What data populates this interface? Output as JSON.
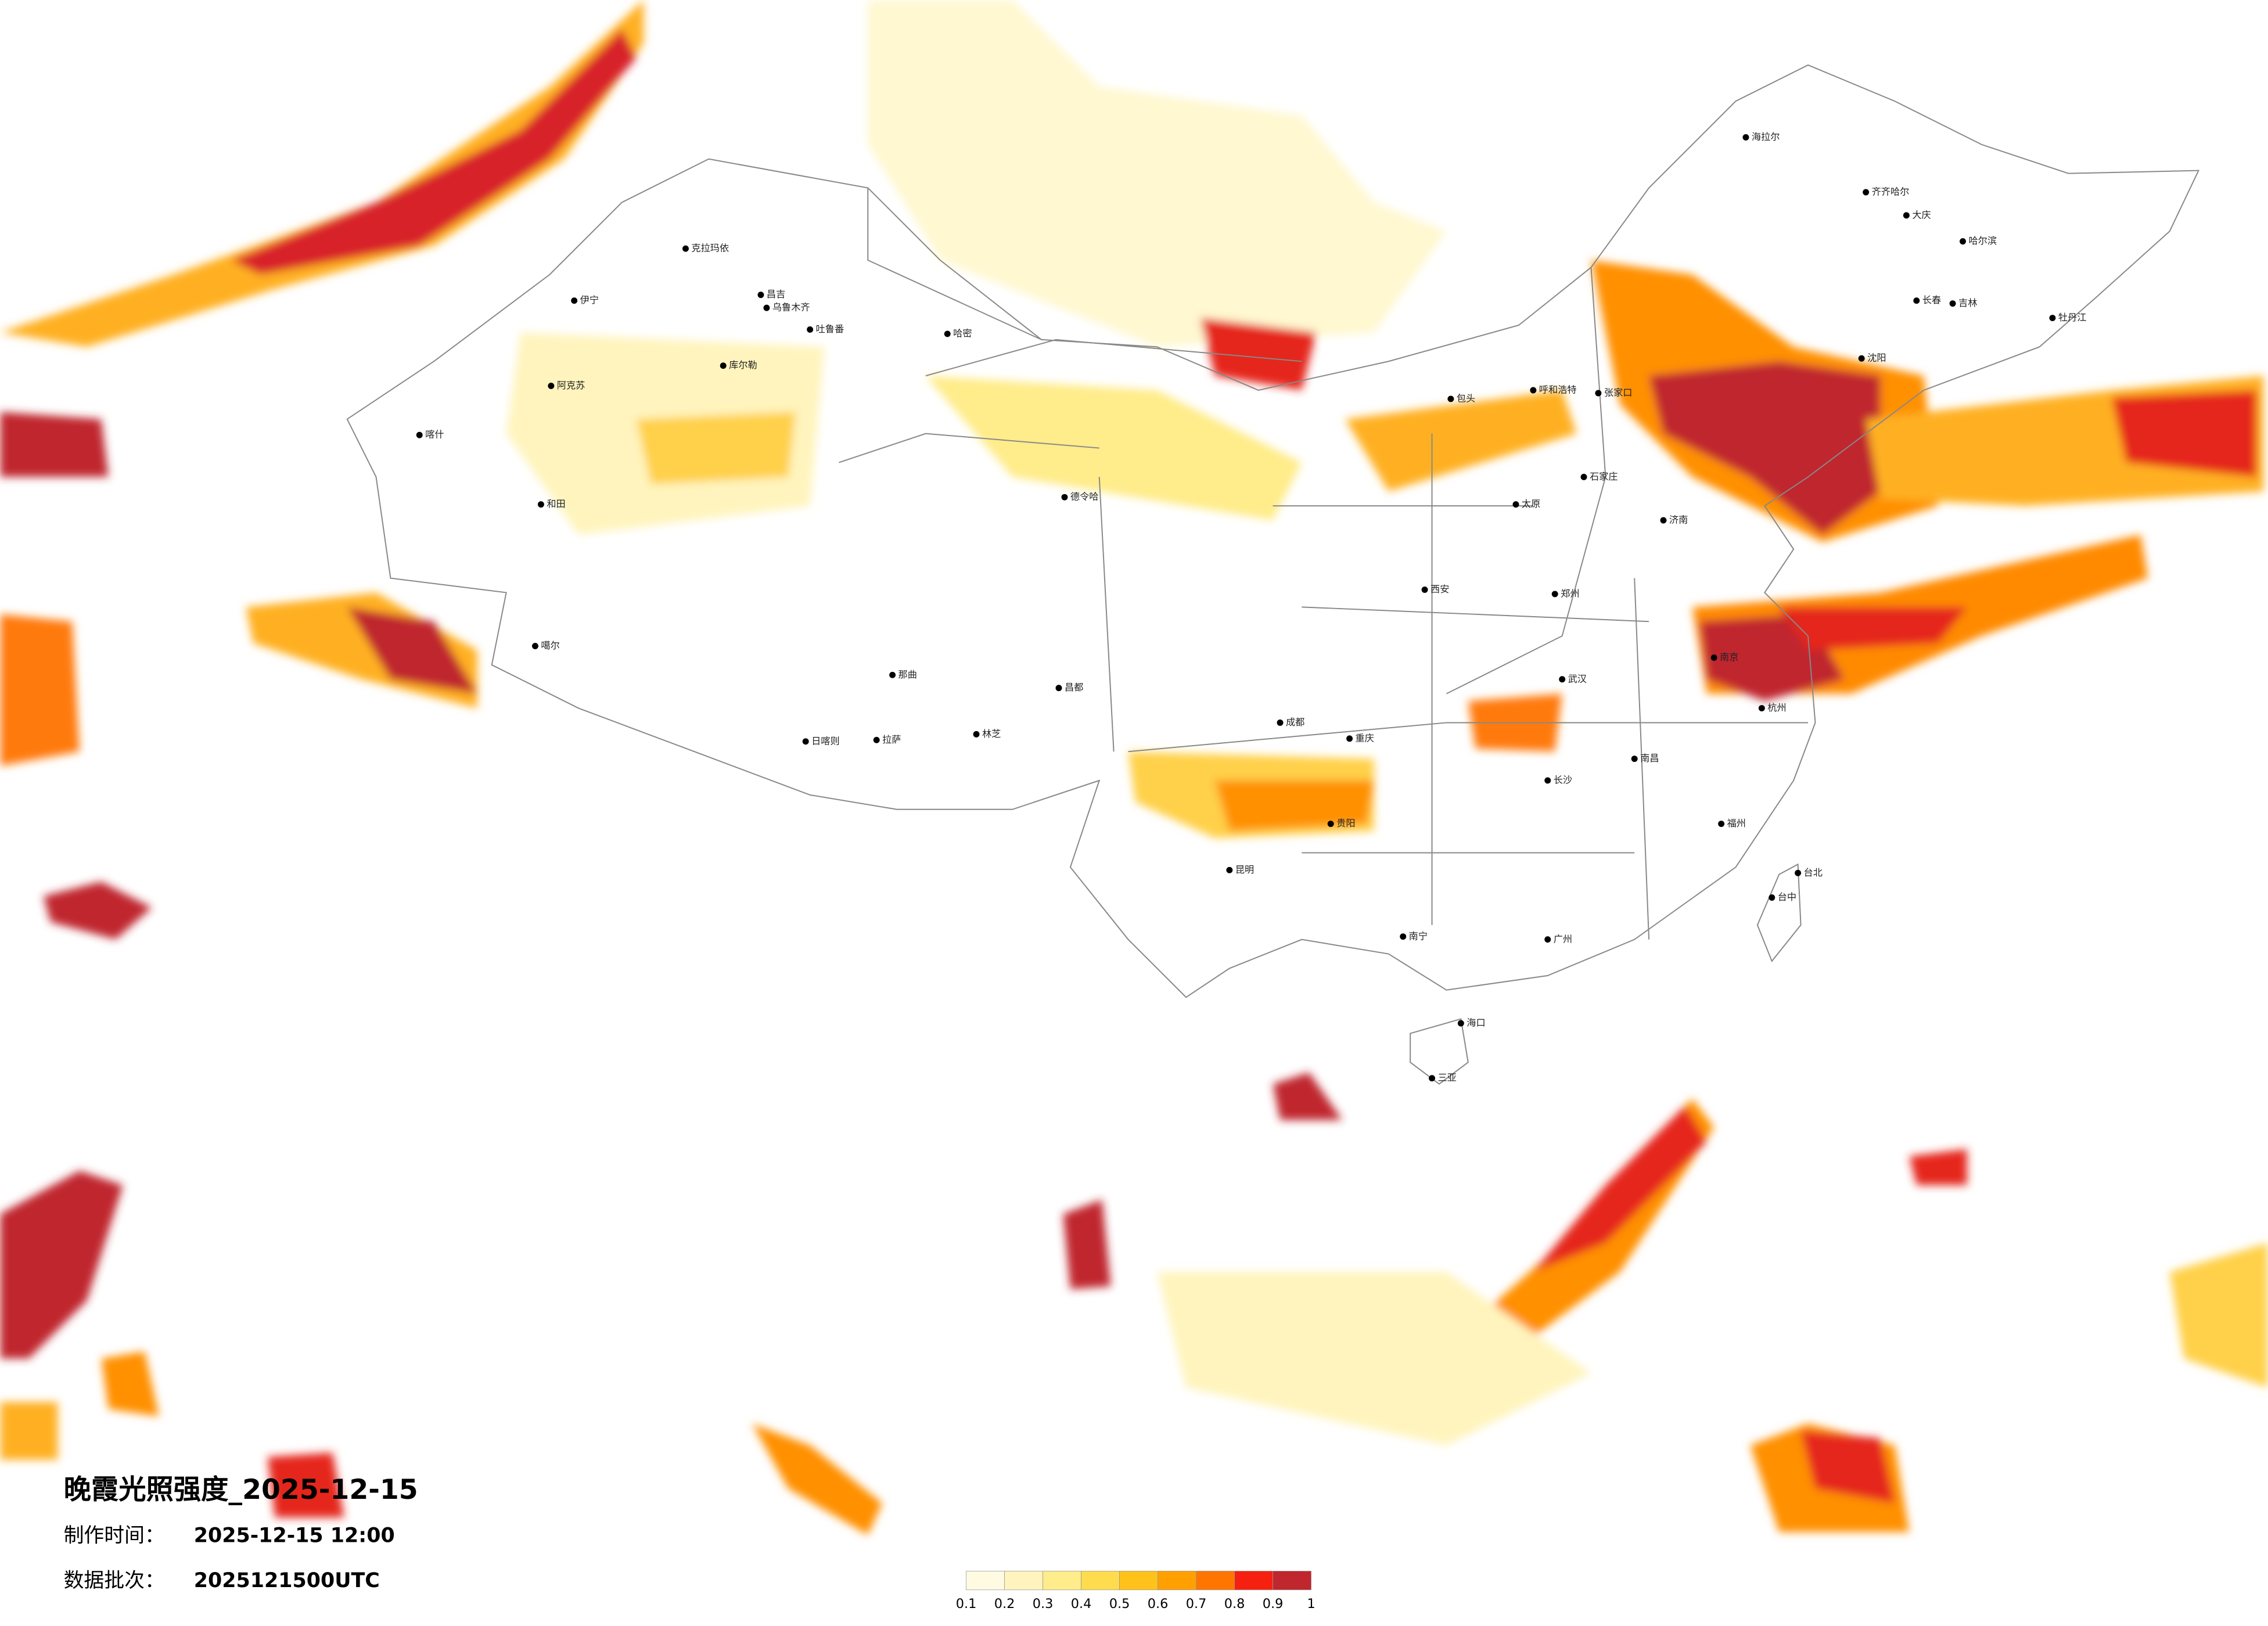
{
  "title": "晚霞光照强度_2025-12-15",
  "info": [
    {
      "label": "制作时间：",
      "value": "2025-12-15 12:00"
    },
    {
      "label": "数据批次：",
      "value": "2025121500UTC"
    }
  ],
  "colorbar": {
    "colors": [
      "#fffbe3",
      "#fff4bd",
      "#ffec8a",
      "#ffdc4d",
      "#ffc21a",
      "#ffa000",
      "#ff7500",
      "#f5200f",
      "#c0262d"
    ],
    "ticks": [
      0.1,
      0.2,
      0.3,
      0.4,
      0.5,
      0.6,
      0.7,
      0.8,
      0.9,
      1
    ]
  },
  "cities": [
    "克拉玛依",
    "伊宁",
    "昌吉",
    "乌鲁木齐",
    "吐鲁番",
    "哈密",
    "库尔勒",
    "阿克苏",
    "喀什",
    "和田",
    "噶尔",
    "那曲",
    "日喀则",
    "拉萨",
    "林芝",
    "昌都",
    "德令哈",
    "呼和浩特",
    "包头",
    "张家口",
    "石家庄",
    "太原",
    "济南",
    "郑州",
    "西安",
    "成都",
    "重庆",
    "武汉",
    "长沙",
    "南昌",
    "贵阳",
    "昆明",
    "南宁",
    "广州",
    "福州",
    "杭州",
    "南京",
    "哈尔滨",
    "长春",
    "沈阳",
    "大庆",
    "齐齐哈尔",
    "海拉尔",
    "吉林",
    "牡丹江",
    "海口",
    "三亚",
    "台北",
    "台中"
  ]
}
